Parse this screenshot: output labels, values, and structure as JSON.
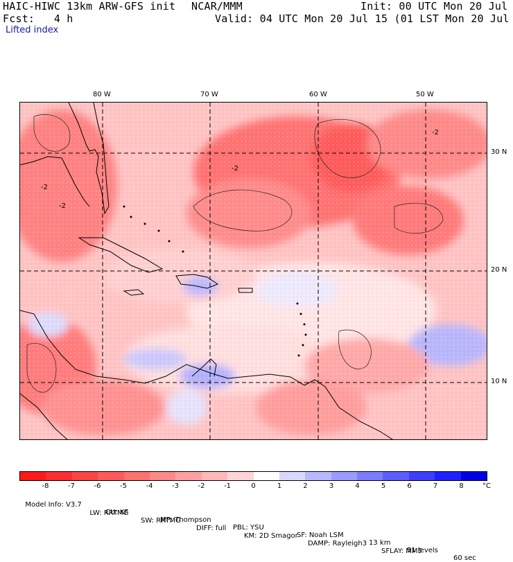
{
  "header": {
    "model_title": "HAIC-HIWC 13km ARW-GFS init",
    "org": "NCAR/MMM",
    "init": "Init: 00 UTC Mon 20 Jul 15",
    "fcst": "Fcst:   4 h",
    "valid": "Valid: 04 UTC Mon 20 Jul 15 (01 LST Mon 20 Jul 15)",
    "field": "Lifted index"
  },
  "map": {
    "longitude_labels": [
      "80 W",
      "70 W",
      "60 W",
      "50 W"
    ],
    "latitude_labels": [
      "30 N",
      "20 N",
      "10 N"
    ],
    "contour_labels": [
      "-2",
      "-2",
      "-2",
      "-2"
    ]
  },
  "colorbar": {
    "ticks": [
      "-8",
      "-7",
      "-6",
      "-5",
      "-4",
      "-3",
      "-2",
      "-1",
      "0",
      "1",
      "2",
      "3",
      "4",
      "5",
      "6",
      "7",
      "8"
    ],
    "unit": "°C",
    "colors": [
      "#ff1a1a",
      "#ff2e2e",
      "#ff4444",
      "#ff5a5a",
      "#ff7070",
      "#ff8888",
      "#ffa0a0",
      "#ffb8b8",
      "#ffd4d4",
      "#ffffff",
      "#d8d8ff",
      "#b8b8ff",
      "#9a9aff",
      "#7c7cff",
      "#5c5cff",
      "#3e3eff",
      "#2020ff",
      "#0000e6"
    ]
  },
  "footer": {
    "line1": [
      "Model Info: V3.7",
      "CU: KF",
      "MP: Thompson",
      "PBL: YSU",
      "SF: Noah LSM",
      "13 km",
      "51 levels",
      "60 sec"
    ],
    "line2": [
      "LW: RRTMG",
      "SW: RRTMG",
      "DIFF: full",
      "KM: 2D Smagor",
      "DAMP: Rayleigh3",
      "SFLAY: MM5"
    ]
  }
}
